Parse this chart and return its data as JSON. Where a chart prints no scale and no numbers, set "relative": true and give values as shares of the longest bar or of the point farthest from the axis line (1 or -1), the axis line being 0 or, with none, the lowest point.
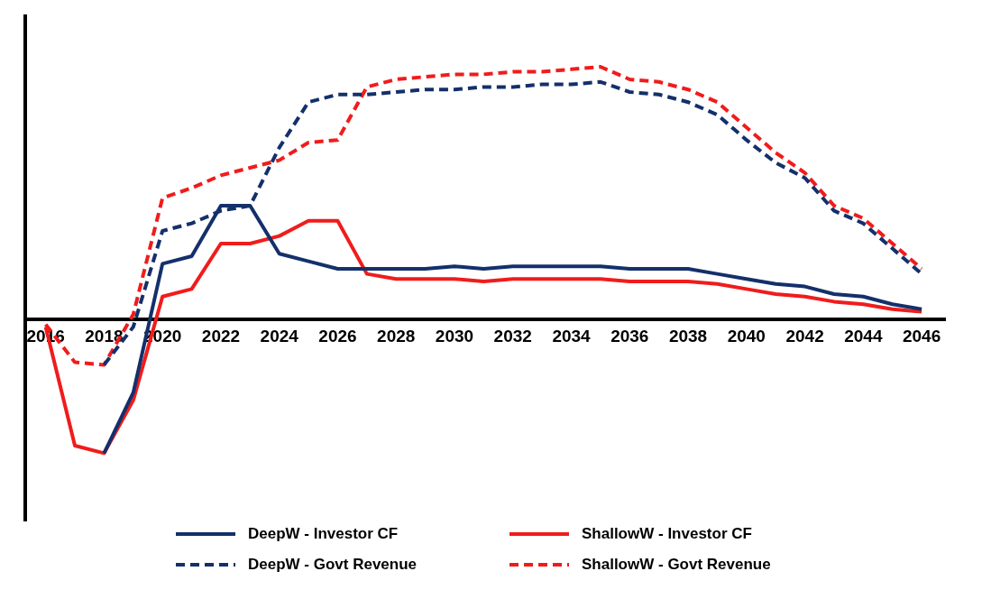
{
  "chart_data": {
    "type": "line",
    "relative": true,
    "x": [
      2016,
      2017,
      2018,
      2019,
      2020,
      2021,
      2022,
      2023,
      2024,
      2025,
      2026,
      2027,
      2028,
      2029,
      2030,
      2031,
      2032,
      2033,
      2034,
      2035,
      2036,
      2037,
      2038,
      2039,
      2040,
      2041,
      2042,
      2043,
      2044,
      2045,
      2046
    ],
    "xlim": [
      2015.3,
      2046.8
    ],
    "xticks": [
      2016,
      2018,
      2020,
      2022,
      2024,
      2026,
      2028,
      2030,
      2032,
      2034,
      2036,
      2038,
      2040,
      2042,
      2044,
      2046
    ],
    "grid": false,
    "legend": "bottom",
    "marker": "none",
    "series": [
      {
        "name": "DeepW - Investor CF",
        "color": "#14306b",
        "line_style": "solid",
        "values": [
          null,
          null,
          -0.53,
          -0.29,
          0.22,
          0.25,
          0.45,
          0.45,
          0.26,
          0.23,
          0.2,
          0.2,
          0.2,
          0.2,
          0.21,
          0.2,
          0.21,
          0.21,
          0.21,
          0.21,
          0.2,
          0.2,
          0.2,
          0.18,
          0.16,
          0.14,
          0.13,
          0.1,
          0.09,
          0.06,
          0.04
        ]
      },
      {
        "name": "ShallowW - Investor CF",
        "color": "#f01c1c",
        "line_style": "solid",
        "values": [
          -0.03,
          -0.5,
          -0.53,
          -0.32,
          0.09,
          0.12,
          0.3,
          0.3,
          0.33,
          0.39,
          0.39,
          0.18,
          0.16,
          0.16,
          0.16,
          0.15,
          0.16,
          0.16,
          0.16,
          0.16,
          0.15,
          0.15,
          0.15,
          0.14,
          0.12,
          0.1,
          0.09,
          0.07,
          0.06,
          0.04,
          0.03
        ]
      },
      {
        "name": "DeepW - Govt Revenue",
        "color": "#14306b",
        "line_style": "dashed",
        "values": [
          null,
          null,
          -0.18,
          -0.03,
          0.35,
          0.38,
          0.43,
          0.45,
          0.68,
          0.86,
          0.89,
          0.89,
          0.9,
          0.91,
          0.91,
          0.92,
          0.92,
          0.93,
          0.93,
          0.94,
          0.9,
          0.89,
          0.86,
          0.81,
          0.71,
          0.62,
          0.56,
          0.43,
          0.38,
          0.28,
          0.18
        ]
      },
      {
        "name": "ShallowW - Govt Revenue",
        "color": "#f01c1c",
        "line_style": "dashed",
        "values": [
          -0.02,
          -0.17,
          -0.18,
          0.02,
          0.48,
          0.52,
          0.57,
          0.6,
          0.63,
          0.7,
          0.71,
          0.92,
          0.95,
          0.96,
          0.97,
          0.97,
          0.98,
          0.98,
          0.99,
          1,
          0.95,
          0.94,
          0.91,
          0.86,
          0.76,
          0.66,
          0.58,
          0.45,
          0.4,
          0.3,
          0.2
        ]
      }
    ]
  }
}
